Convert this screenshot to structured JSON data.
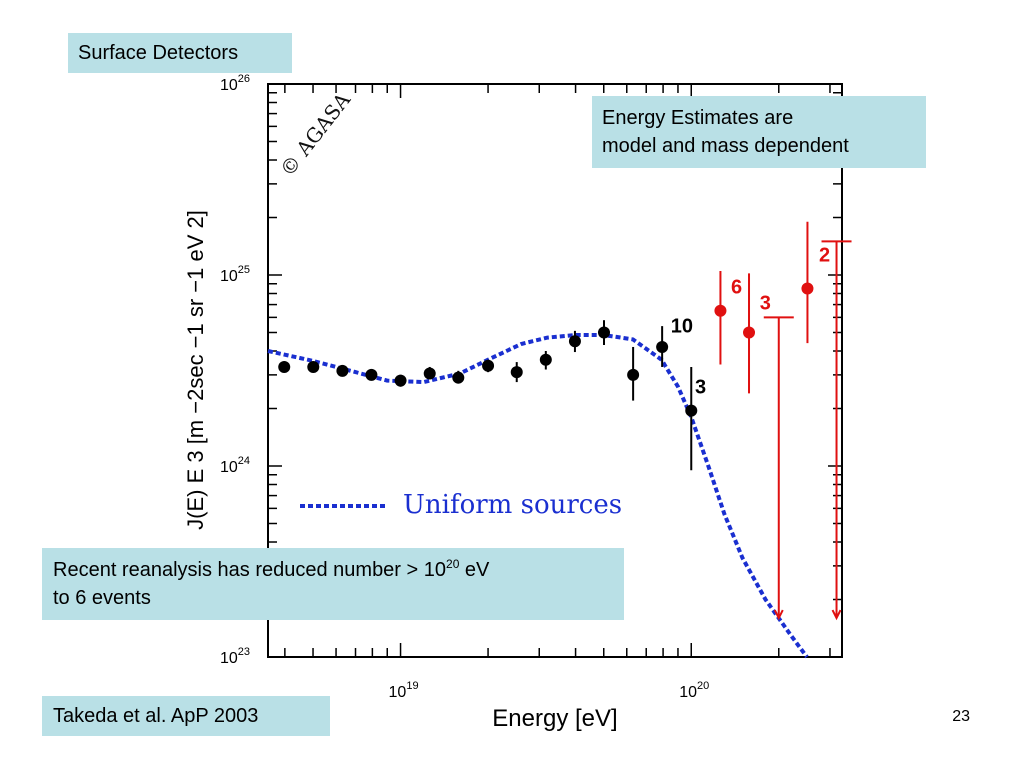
{
  "slide": {
    "title": "Surface Detectors",
    "energy_note": [
      "Energy Estimates are",
      "model and mass dependent"
    ],
    "reanalysis_note": {
      "prefix": "Recent reanalysis has reduced number > 10",
      "sup": "20",
      "suffix": " eV",
      "line2": "to 6 events"
    },
    "citation": "Takeda et al. ApP 2003",
    "page_number": "23"
  },
  "chart_data": {
    "type": "scatter",
    "title": "",
    "watermark": "© AGASA",
    "xlabel": "Energy [eV]",
    "ylabel": "J(E) E 3 [m −2sec −1 sr −1 eV 2]",
    "x_scale": "log",
    "y_scale": "log",
    "xlim": [
      3.5e+18,
      3.3e+20
    ],
    "ylim": [
      1e+23,
      1e+26
    ],
    "x_ticks": [
      {
        "value": 1e+19,
        "base": "10",
        "exp": "19"
      },
      {
        "value": 1e+20,
        "base": "10",
        "exp": "20"
      }
    ],
    "y_ticks": [
      {
        "value": 1e+23,
        "base": "10",
        "exp": "23"
      },
      {
        "value": 1e+24,
        "base": "10",
        "exp": "24"
      },
      {
        "value": 1e+25,
        "base": "10",
        "exp": "25"
      },
      {
        "value": 1e+26,
        "base": "10",
        "exp": "26"
      }
    ],
    "legend": {
      "label": "Uniform sources",
      "position": "lower-left"
    },
    "colors": {
      "data": "#000000",
      "highlight": "#e01010",
      "model": "#1a2fd0",
      "callout": "#b9e0e6"
    },
    "series": [
      {
        "name": "AGASA",
        "color": "#000000",
        "points": [
          {
            "x": 3.98e+18,
            "y": 3.3e+24,
            "lo": 3.1e+24,
            "hi": 3.5e+24
          },
          {
            "x": 5.01e+18,
            "y": 3.3e+24,
            "lo": 3.1e+24,
            "hi": 3.5e+24
          },
          {
            "x": 6.31e+18,
            "y": 3.15e+24,
            "lo": 2.95e+24,
            "hi": 3.35e+24
          },
          {
            "x": 7.94e+18,
            "y": 3e+24,
            "lo": 2.8e+24,
            "hi": 3.2e+24
          },
          {
            "x": 1e+19,
            "y": 2.8e+24,
            "lo": 2.6e+24,
            "hi": 3e+24
          },
          {
            "x": 1.26e+19,
            "y": 3.05e+24,
            "lo": 2.85e+24,
            "hi": 3.3e+24
          },
          {
            "x": 1.58e+19,
            "y": 2.9e+24,
            "lo": 2.7e+24,
            "hi": 3.15e+24
          },
          {
            "x": 2e+19,
            "y": 3.35e+24,
            "lo": 3.1e+24,
            "hi": 3.6e+24
          },
          {
            "x": 2.51e+19,
            "y": 3.1e+24,
            "lo": 2.75e+24,
            "hi": 3.5e+24
          },
          {
            "x": 3.16e+19,
            "y": 3.6e+24,
            "lo": 3.2e+24,
            "hi": 4e+24
          },
          {
            "x": 3.98e+19,
            "y": 4.5e+24,
            "lo": 3.95e+24,
            "hi": 5.1e+24
          },
          {
            "x": 5.01e+19,
            "y": 5e+24,
            "lo": 4.3e+24,
            "hi": 5.8e+24
          },
          {
            "x": 6.31e+19,
            "y": 3e+24,
            "lo": 2.2e+24,
            "hi": 4.2e+24
          },
          {
            "x": 7.94e+19,
            "y": 4.2e+24,
            "lo": 3.3e+24,
            "hi": 5.4e+24
          },
          {
            "x": 1e+20,
            "y": 1.95e+24,
            "lo": 9.5e+23,
            "hi": 3.3e+24
          }
        ]
      },
      {
        "name": "highlighted",
        "color": "#e01010",
        "points": [
          {
            "x": 1.26e+20,
            "y": 6.5e+24,
            "lo": 3.4e+24,
            "hi": 1.05e+25
          },
          {
            "x": 1.58e+20,
            "y": 5e+24,
            "lo": 2.4e+24,
            "hi": 1.02e+25
          },
          {
            "x": 2.51e+20,
            "y": 8.5e+24,
            "lo": 4.4e+24,
            "hi": 1.9e+25
          }
        ]
      },
      {
        "name": "upper limits",
        "color": "#e01010",
        "points": [
          {
            "x": 2e+20,
            "y": 6e+24,
            "arrow_to": 1.6e+23
          },
          {
            "x": 3.16e+20,
            "y": 1.5e+25,
            "arrow_to": 1.6e+23
          }
        ]
      }
    ],
    "model_curve": {
      "name": "Uniform sources",
      "color": "#1a2fd0",
      "style": "dashed",
      "points": [
        [
          3.5e+18,
          4e+24
        ],
        [
          5e+18,
          3.55e+24
        ],
        [
          7e+18,
          3.1e+24
        ],
        [
          9e+18,
          2.8e+24
        ],
        [
          1.2e+19,
          2.75e+24
        ],
        [
          1.6e+19,
          3.05e+24
        ],
        [
          2e+19,
          3.6e+24
        ],
        [
          2.6e+19,
          4.35e+24
        ],
        [
          3.2e+19,
          4.7e+24
        ],
        [
          4e+19,
          4.85e+24
        ],
        [
          5e+19,
          4.85e+24
        ],
        [
          6.3e+19,
          4.6e+24
        ],
        [
          7.9e+19,
          3.6e+24
        ],
        [
          9e+19,
          2.6e+24
        ],
        [
          1e+20,
          1.8e+24
        ],
        [
          1.15e+20,
          9.8e+23
        ],
        [
          1.3e+20,
          5.6e+23
        ],
        [
          1.5e+20,
          3.3e+23
        ],
        [
          1.8e+20,
          2e+23
        ],
        [
          2.2e+20,
          1.3e+23
        ],
        [
          2.5e+20,
          1e+23
        ]
      ]
    },
    "annotations": [
      {
        "text": "10",
        "x": 8.5e+19,
        "y": 5e+24,
        "color": "#000000"
      },
      {
        "text": "3",
        "x": 1.03e+20,
        "y": 2.4e+24,
        "color": "#000000"
      },
      {
        "text": "6",
        "x": 1.37e+20,
        "y": 8e+24,
        "color": "#e01010"
      },
      {
        "text": "3",
        "x": 1.72e+20,
        "y": 6.6e+24,
        "color": "#e01010"
      },
      {
        "text": "2",
        "x": 2.75e+20,
        "y": 1.18e+25,
        "color": "#e01010"
      }
    ]
  }
}
